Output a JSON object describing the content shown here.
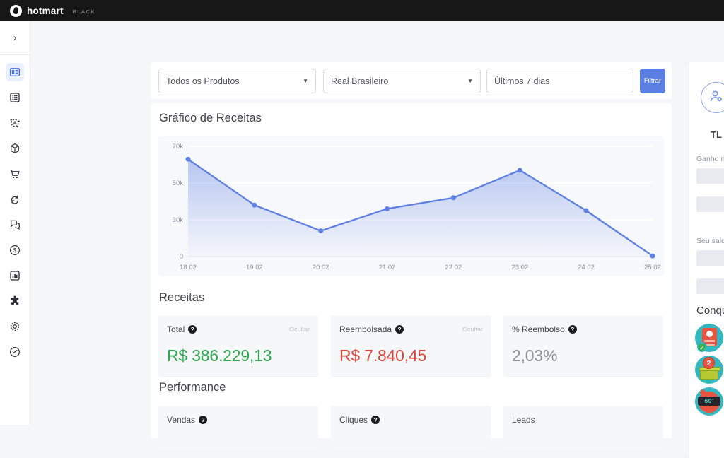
{
  "topbar": {
    "brand": "hotmart",
    "brand_suffix": "BLACK"
  },
  "sidebar": {
    "items": [
      "dashboard",
      "apps-grid",
      "affiliates-network",
      "products",
      "sales-cart",
      "subscriptions",
      "chat",
      "financial",
      "reports",
      "extensions",
      "settings",
      "help"
    ]
  },
  "filters": {
    "product_dropdown": "Todos os Produtos",
    "currency_dropdown": "Real Brasileiro",
    "date_input": "Últimos 7 dias",
    "filter_button": "Filtrar"
  },
  "chart_section": {
    "title": "Gráfico de Receitas"
  },
  "chart_data": {
    "type": "line",
    "title": "Gráfico de Receitas",
    "x": [
      "18 02",
      "19 02",
      "20 02",
      "21 02",
      "22 02",
      "23 02",
      "24 02",
      "25 02"
    ],
    "values": [
      63000,
      38000,
      21000,
      36000,
      42000,
      57000,
      35000,
      500
    ],
    "y_ticks": [
      {
        "label": "70k",
        "value": 70000
      },
      {
        "label": "50k",
        "value": 50000
      },
      {
        "label": "30k",
        "value": 30000
      },
      {
        "label": "0",
        "value": 0
      }
    ],
    "ylim": [
      0,
      70000
    ],
    "grid": true,
    "legend": false,
    "line_color": "#5d80e2",
    "area_fill": true
  },
  "receitas": {
    "title": "Receitas",
    "cards": [
      {
        "label": "Total",
        "action": "Ocultar",
        "value": "R$ 386.229,13",
        "color": "#2fa84f"
      },
      {
        "label": "Reembolsada",
        "action": "Ocultar",
        "value": "R$ 7.840,45",
        "color": "#df443a"
      },
      {
        "label": "% Reembolso",
        "action": "",
        "value": "2,03%",
        "color": "#8f909b"
      }
    ]
  },
  "performance": {
    "title": "Performance",
    "cards": [
      {
        "label": "Vendas"
      },
      {
        "label": "Cliques"
      },
      {
        "label": "Leads"
      }
    ]
  },
  "right_panel": {
    "initials": "TL",
    "gain_label": "Ganho n",
    "balance_label": "Seu sald",
    "achievements_label": "Conqu",
    "badge2_count": "2",
    "badge3_time": "60'"
  }
}
